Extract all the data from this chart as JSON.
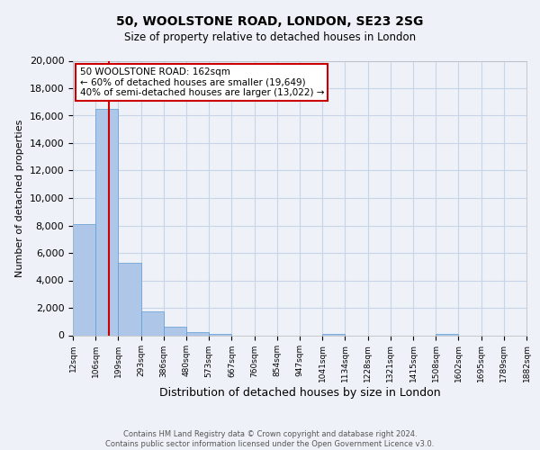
{
  "title": "50, WOOLSTONE ROAD, LONDON, SE23 2SG",
  "subtitle": "Size of property relative to detached houses in London",
  "xlabel": "Distribution of detached houses by size in London",
  "ylabel": "Number of detached properties",
  "bin_labels": [
    "12sqm",
    "106sqm",
    "199sqm",
    "293sqm",
    "386sqm",
    "480sqm",
    "573sqm",
    "667sqm",
    "760sqm",
    "854sqm",
    "947sqm",
    "1041sqm",
    "1134sqm",
    "1228sqm",
    "1321sqm",
    "1415sqm",
    "1508sqm",
    "1602sqm",
    "1695sqm",
    "1789sqm",
    "1882sqm"
  ],
  "bar_values": [
    8100,
    16500,
    5300,
    1750,
    650,
    250,
    120,
    0,
    0,
    0,
    0,
    80,
    0,
    0,
    0,
    0,
    80,
    0,
    0,
    0,
    0
  ],
  "bar_color": "#aec6e8",
  "bar_edgecolor": "#5b9bd5",
  "annotation_title": "50 WOOLSTONE ROAD: 162sqm",
  "annotation_line1": "← 60% of detached houses are smaller (19,649)",
  "annotation_line2": "40% of semi-detached houses are larger (13,022) →",
  "annotation_box_facecolor": "#ffffff",
  "annotation_box_edgecolor": "#cc0000",
  "red_line_color": "#cc0000",
  "ylim": [
    0,
    20000
  ],
  "yticks": [
    0,
    2000,
    4000,
    6000,
    8000,
    10000,
    12000,
    14000,
    16000,
    18000,
    20000
  ],
  "footer_line1": "Contains HM Land Registry data © Crown copyright and database right 2024.",
  "footer_line2": "Contains public sector information licensed under the Open Government Licence v3.0.",
  "grid_color": "#c8d4e8",
  "background_color": "#eef2f8",
  "title_fontsize": 10,
  "subtitle_fontsize": 8.5,
  "ylabel_fontsize": 8,
  "xlabel_fontsize": 9,
  "xtick_fontsize": 6.5,
  "ytick_fontsize": 8,
  "footer_fontsize": 6
}
